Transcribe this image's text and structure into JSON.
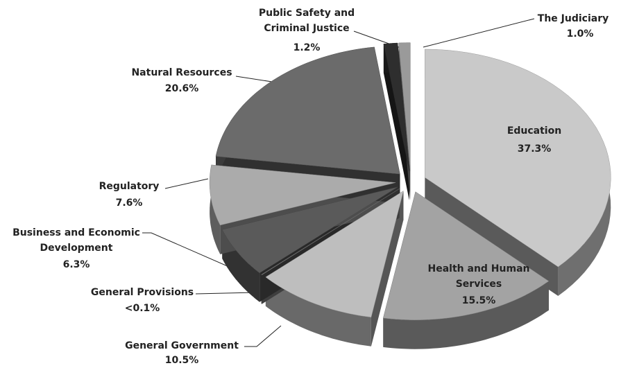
{
  "chart_data": {
    "type": "pie",
    "categories": [
      "Education",
      "Health and Human Services",
      "General Government",
      "General Provisions",
      "Business and Economic Development",
      "Regulatory",
      "Natural Resources",
      "Public Safety and Criminal Justice",
      "The Judiciary"
    ],
    "values": [
      37.3,
      15.5,
      10.5,
      0.05,
      6.3,
      7.6,
      20.6,
      1.2,
      1.0
    ],
    "value_labels": [
      "37.3%",
      "15.5%",
      "10.5%",
      "<0.1%",
      "6.3%",
      "7.6%",
      "20.6%",
      "1.2%",
      "1.0%"
    ],
    "colors": [
      "#c9c9c9",
      "#a3a3a3",
      "#bebebe",
      "#8a8a8a",
      "#5a5a5a",
      "#ababab",
      "#6b6b6b",
      "#2e2e2e",
      "#9a9a9a"
    ]
  }
}
